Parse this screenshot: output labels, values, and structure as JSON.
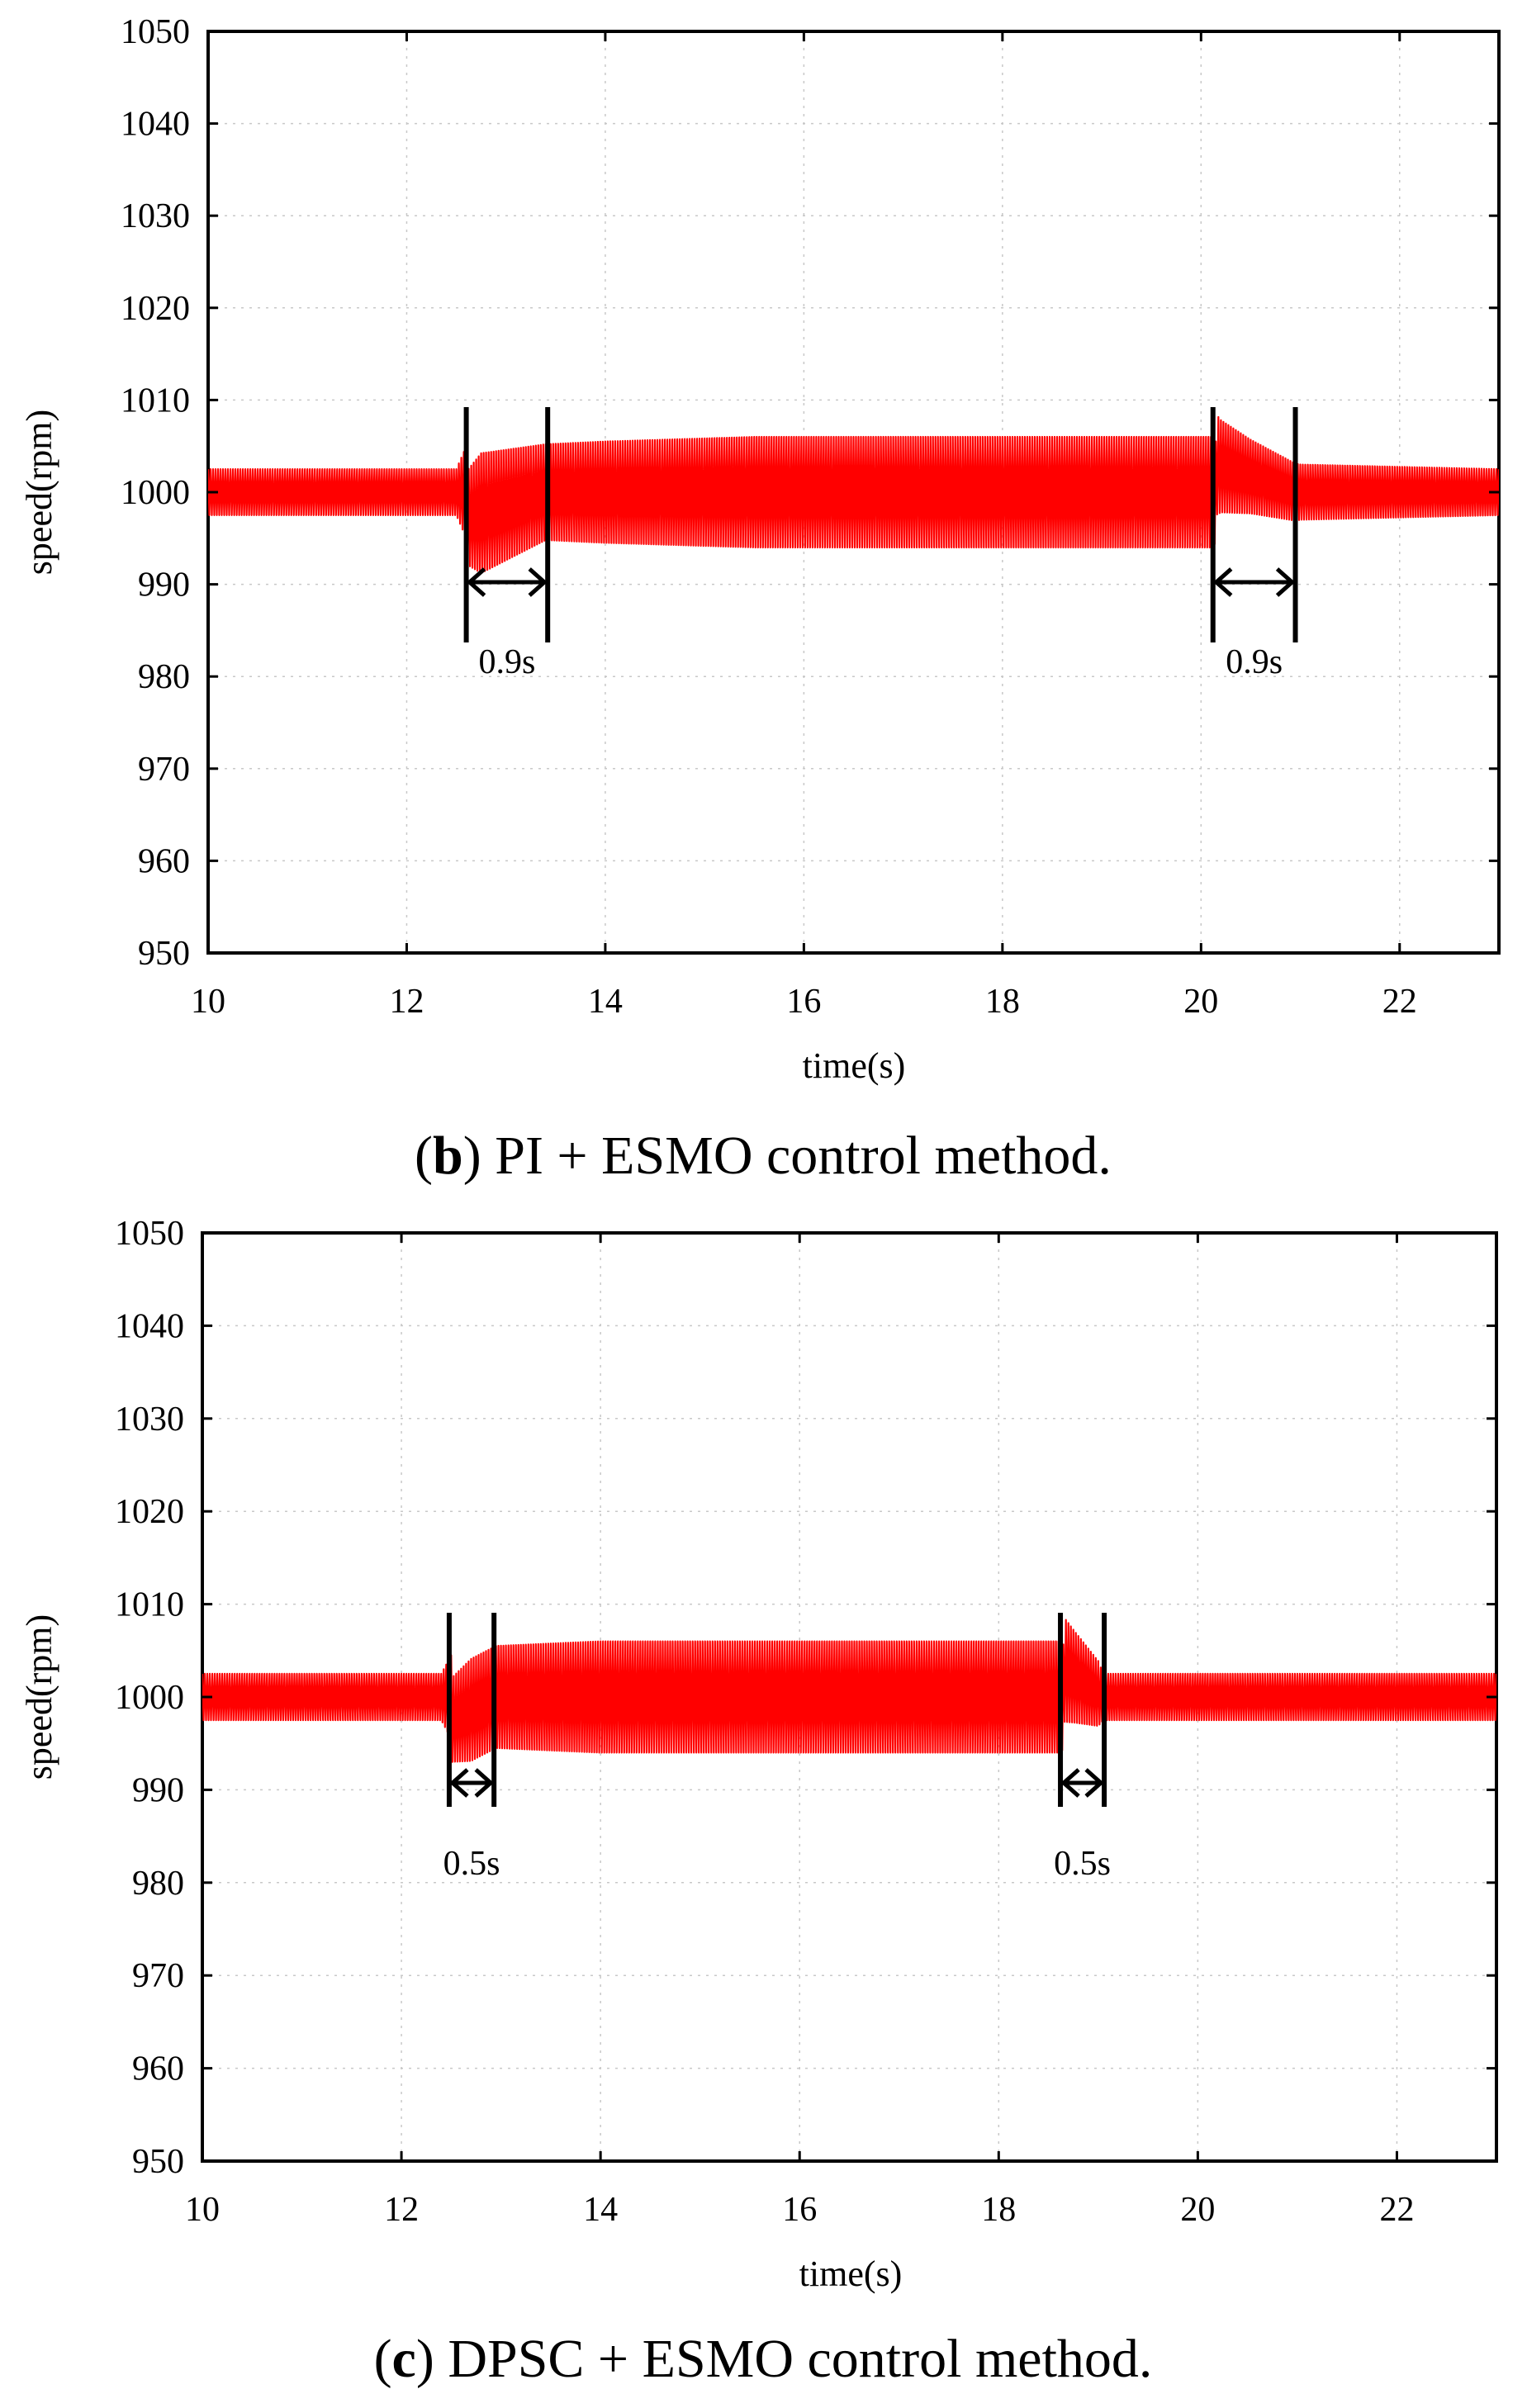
{
  "figure": {
    "colors": {
      "signal": "#ff0000",
      "axes": "#000000",
      "grid": "#c8c8c8",
      "background": "#ffffff"
    }
  },
  "chart_data": [
    {
      "type": "line",
      "panel_label": "b",
      "caption_open": "(",
      "caption_close": ")",
      "caption_text": " PI + ESMO control method.",
      "title": "(b) PI + ESMO control method.",
      "xlabel": "time(s)",
      "ylabel": "speed(rpm)",
      "xlim": [
        10,
        23
      ],
      "ylim": [
        950,
        1050
      ],
      "xticks": [
        10,
        12,
        14,
        16,
        18,
        20,
        22
      ],
      "yticks": [
        950,
        960,
        970,
        980,
        990,
        1000,
        1010,
        1020,
        1030,
        1040,
        1050
      ],
      "grid": true,
      "series": [
        {
          "name": "speed",
          "color": "#ff0000",
          "description": "high-frequency oscillation around 1000 rpm; amplitude envelope (half peak-to-peak)",
          "center": 1000,
          "envelope": [
            [
              10.0,
              2.5
            ],
            [
              12.5,
              2.5
            ],
            [
              12.6,
              5.0
            ],
            [
              12.75,
              6.5
            ],
            [
              13.0,
              6.0
            ],
            [
              13.4,
              5.2
            ],
            [
              14.0,
              5.5
            ],
            [
              15.5,
              6.0
            ],
            [
              17.5,
              6.0
            ],
            [
              19.0,
              6.0
            ],
            [
              20.1,
              6.0
            ],
            [
              20.2,
              5.0
            ],
            [
              20.5,
              4.0
            ],
            [
              21.0,
              3.0
            ],
            [
              23.0,
              2.5
            ]
          ],
          "transients": [
            {
              "t_start": 12.6,
              "t_end": 13.4,
              "offset_start": -2.8
            },
            {
              "t_start": 20.15,
              "t_end": 20.95,
              "offset_start": 3.0
            }
          ]
        }
      ],
      "annotations": [
        {
          "label": "0.9s",
          "t_start": 12.6,
          "t_end": 13.42
        },
        {
          "label": "0.9s",
          "t_start": 20.12,
          "t_end": 20.95
        }
      ]
    },
    {
      "type": "line",
      "panel_label": "c",
      "caption_open": "(",
      "caption_close": ")",
      "caption_text": " DPSC + ESMO control method.",
      "title": "(c) DPSC + ESMO control method.",
      "xlabel": "time(s)",
      "ylabel": "speed(rpm)",
      "xlim": [
        10,
        23
      ],
      "ylim": [
        950,
        1050
      ],
      "xticks": [
        10,
        12,
        14,
        16,
        18,
        20,
        22
      ],
      "yticks": [
        950,
        960,
        970,
        980,
        990,
        1000,
        1010,
        1020,
        1030,
        1040,
        1050
      ],
      "grid": true,
      "series": [
        {
          "name": "speed",
          "color": "#ff0000",
          "description": "high-frequency oscillation around 1000 rpm; amplitude envelope (half peak-to-peak)",
          "center": 1000,
          "envelope": [
            [
              10.0,
              2.5
            ],
            [
              12.4,
              2.5
            ],
            [
              12.5,
              4.5
            ],
            [
              12.7,
              5.5
            ],
            [
              12.95,
              5.5
            ],
            [
              14.0,
              6.0
            ],
            [
              16.0,
              6.0
            ],
            [
              18.6,
              6.0
            ],
            [
              18.75,
              5.0
            ],
            [
              19.0,
              3.5
            ],
            [
              19.05,
              2.5
            ],
            [
              23.0,
              2.5
            ]
          ],
          "transients": [
            {
              "t_start": 12.5,
              "t_end": 12.95,
              "offset_start": -2.5
            },
            {
              "t_start": 18.65,
              "t_end": 19.05,
              "offset_start": 3.0
            }
          ]
        }
      ],
      "annotations": [
        {
          "label": "0.5s",
          "t_start": 12.48,
          "t_end": 12.93
        },
        {
          "label": "0.5s",
          "t_start": 18.62,
          "t_end": 19.06
        }
      ]
    }
  ]
}
